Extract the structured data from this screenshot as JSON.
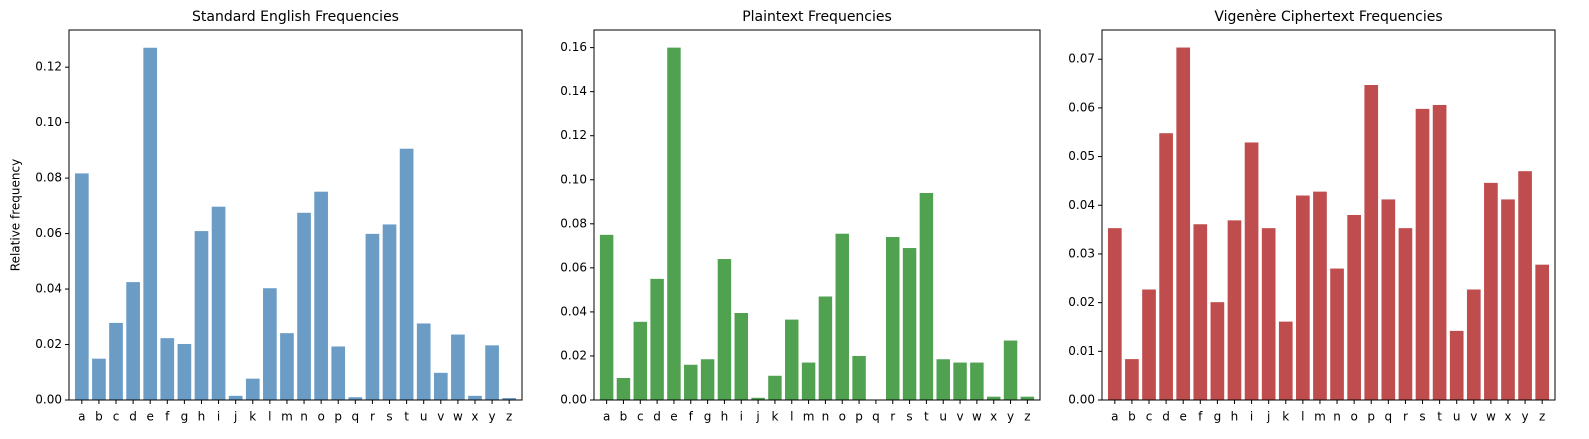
{
  "chart_data": [
    {
      "type": "bar",
      "title": "Standard English Frequencies",
      "y_label": "Relative frequency",
      "color": "#6a9cc6",
      "categories": [
        "a",
        "b",
        "c",
        "d",
        "e",
        "f",
        "g",
        "h",
        "i",
        "j",
        "k",
        "l",
        "m",
        "n",
        "o",
        "p",
        "q",
        "r",
        "s",
        "t",
        "u",
        "v",
        "w",
        "x",
        "y",
        "z"
      ],
      "values": [
        0.0817,
        0.0149,
        0.0278,
        0.0425,
        0.127,
        0.0223,
        0.0202,
        0.0609,
        0.0697,
        0.0015,
        0.0077,
        0.0403,
        0.0241,
        0.0675,
        0.0751,
        0.0193,
        0.001,
        0.0599,
        0.0633,
        0.0906,
        0.0276,
        0.0098,
        0.0236,
        0.0015,
        0.0197,
        0.0007
      ],
      "ylim": [
        0,
        0.1334
      ],
      "yticks": [
        {
          "value": 0,
          "label": "0.00"
        },
        {
          "value": 0.02,
          "label": "0.02"
        },
        {
          "value": 0.04,
          "label": "0.04"
        },
        {
          "value": 0.06,
          "label": "0.06"
        },
        {
          "value": 0.08,
          "label": "0.08"
        },
        {
          "value": 0.1,
          "label": "0.10"
        },
        {
          "value": 0.12,
          "label": "0.12"
        }
      ]
    },
    {
      "type": "bar",
      "title": "Plaintext Frequencies",
      "color": "#50a150",
      "categories": [
        "a",
        "b",
        "c",
        "d",
        "e",
        "f",
        "g",
        "h",
        "i",
        "j",
        "k",
        "l",
        "m",
        "n",
        "o",
        "p",
        "q",
        "r",
        "s",
        "t",
        "u",
        "v",
        "w",
        "x",
        "y",
        "z"
      ],
      "values": [
        0.075,
        0.01,
        0.0355,
        0.055,
        0.16,
        0.016,
        0.0185,
        0.064,
        0.0395,
        0.001,
        0.011,
        0.0365,
        0.017,
        0.047,
        0.0755,
        0.02,
        0,
        0.074,
        0.069,
        0.094,
        0.0185,
        0.017,
        0.017,
        0.0015,
        0.027,
        0.0015
      ],
      "ylim": [
        0,
        0.168
      ],
      "yticks": [
        {
          "value": 0,
          "label": "0.00"
        },
        {
          "value": 0.02,
          "label": "0.02"
        },
        {
          "value": 0.04,
          "label": "0.04"
        },
        {
          "value": 0.06,
          "label": "0.06"
        },
        {
          "value": 0.08,
          "label": "0.08"
        },
        {
          "value": 0.1,
          "label": "0.10"
        },
        {
          "value": 0.12,
          "label": "0.12"
        },
        {
          "value": 0.14,
          "label": "0.14"
        },
        {
          "value": 0.16,
          "label": "0.16"
        }
      ]
    },
    {
      "type": "bar",
      "title": "Vigenère Ciphertext Frequencies",
      "color": "#c04d4d",
      "categories": [
        "a",
        "b",
        "c",
        "d",
        "e",
        "f",
        "g",
        "h",
        "i",
        "j",
        "k",
        "l",
        "m",
        "n",
        "o",
        "p",
        "q",
        "r",
        "s",
        "t",
        "u",
        "v",
        "w",
        "x",
        "y",
        "z"
      ],
      "values": [
        0.0353,
        0.0084,
        0.0227,
        0.0548,
        0.0724,
        0.0361,
        0.0201,
        0.0369,
        0.0529,
        0.0353,
        0.0161,
        0.042,
        0.0428,
        0.027,
        0.038,
        0.0647,
        0.0412,
        0.0353,
        0.0598,
        0.0606,
        0.0142,
        0.0227,
        0.0446,
        0.0412,
        0.047,
        0.0278
      ],
      "ylim": [
        0,
        0.076
      ],
      "yticks": [
        {
          "value": 0,
          "label": "0.00"
        },
        {
          "value": 0.01,
          "label": "0.01"
        },
        {
          "value": 0.02,
          "label": "0.02"
        },
        {
          "value": 0.03,
          "label": "0.03"
        },
        {
          "value": 0.04,
          "label": "0.04"
        },
        {
          "value": 0.05,
          "label": "0.05"
        },
        {
          "value": 0.06,
          "label": "0.06"
        },
        {
          "value": 0.07,
          "label": "0.07"
        }
      ]
    }
  ]
}
